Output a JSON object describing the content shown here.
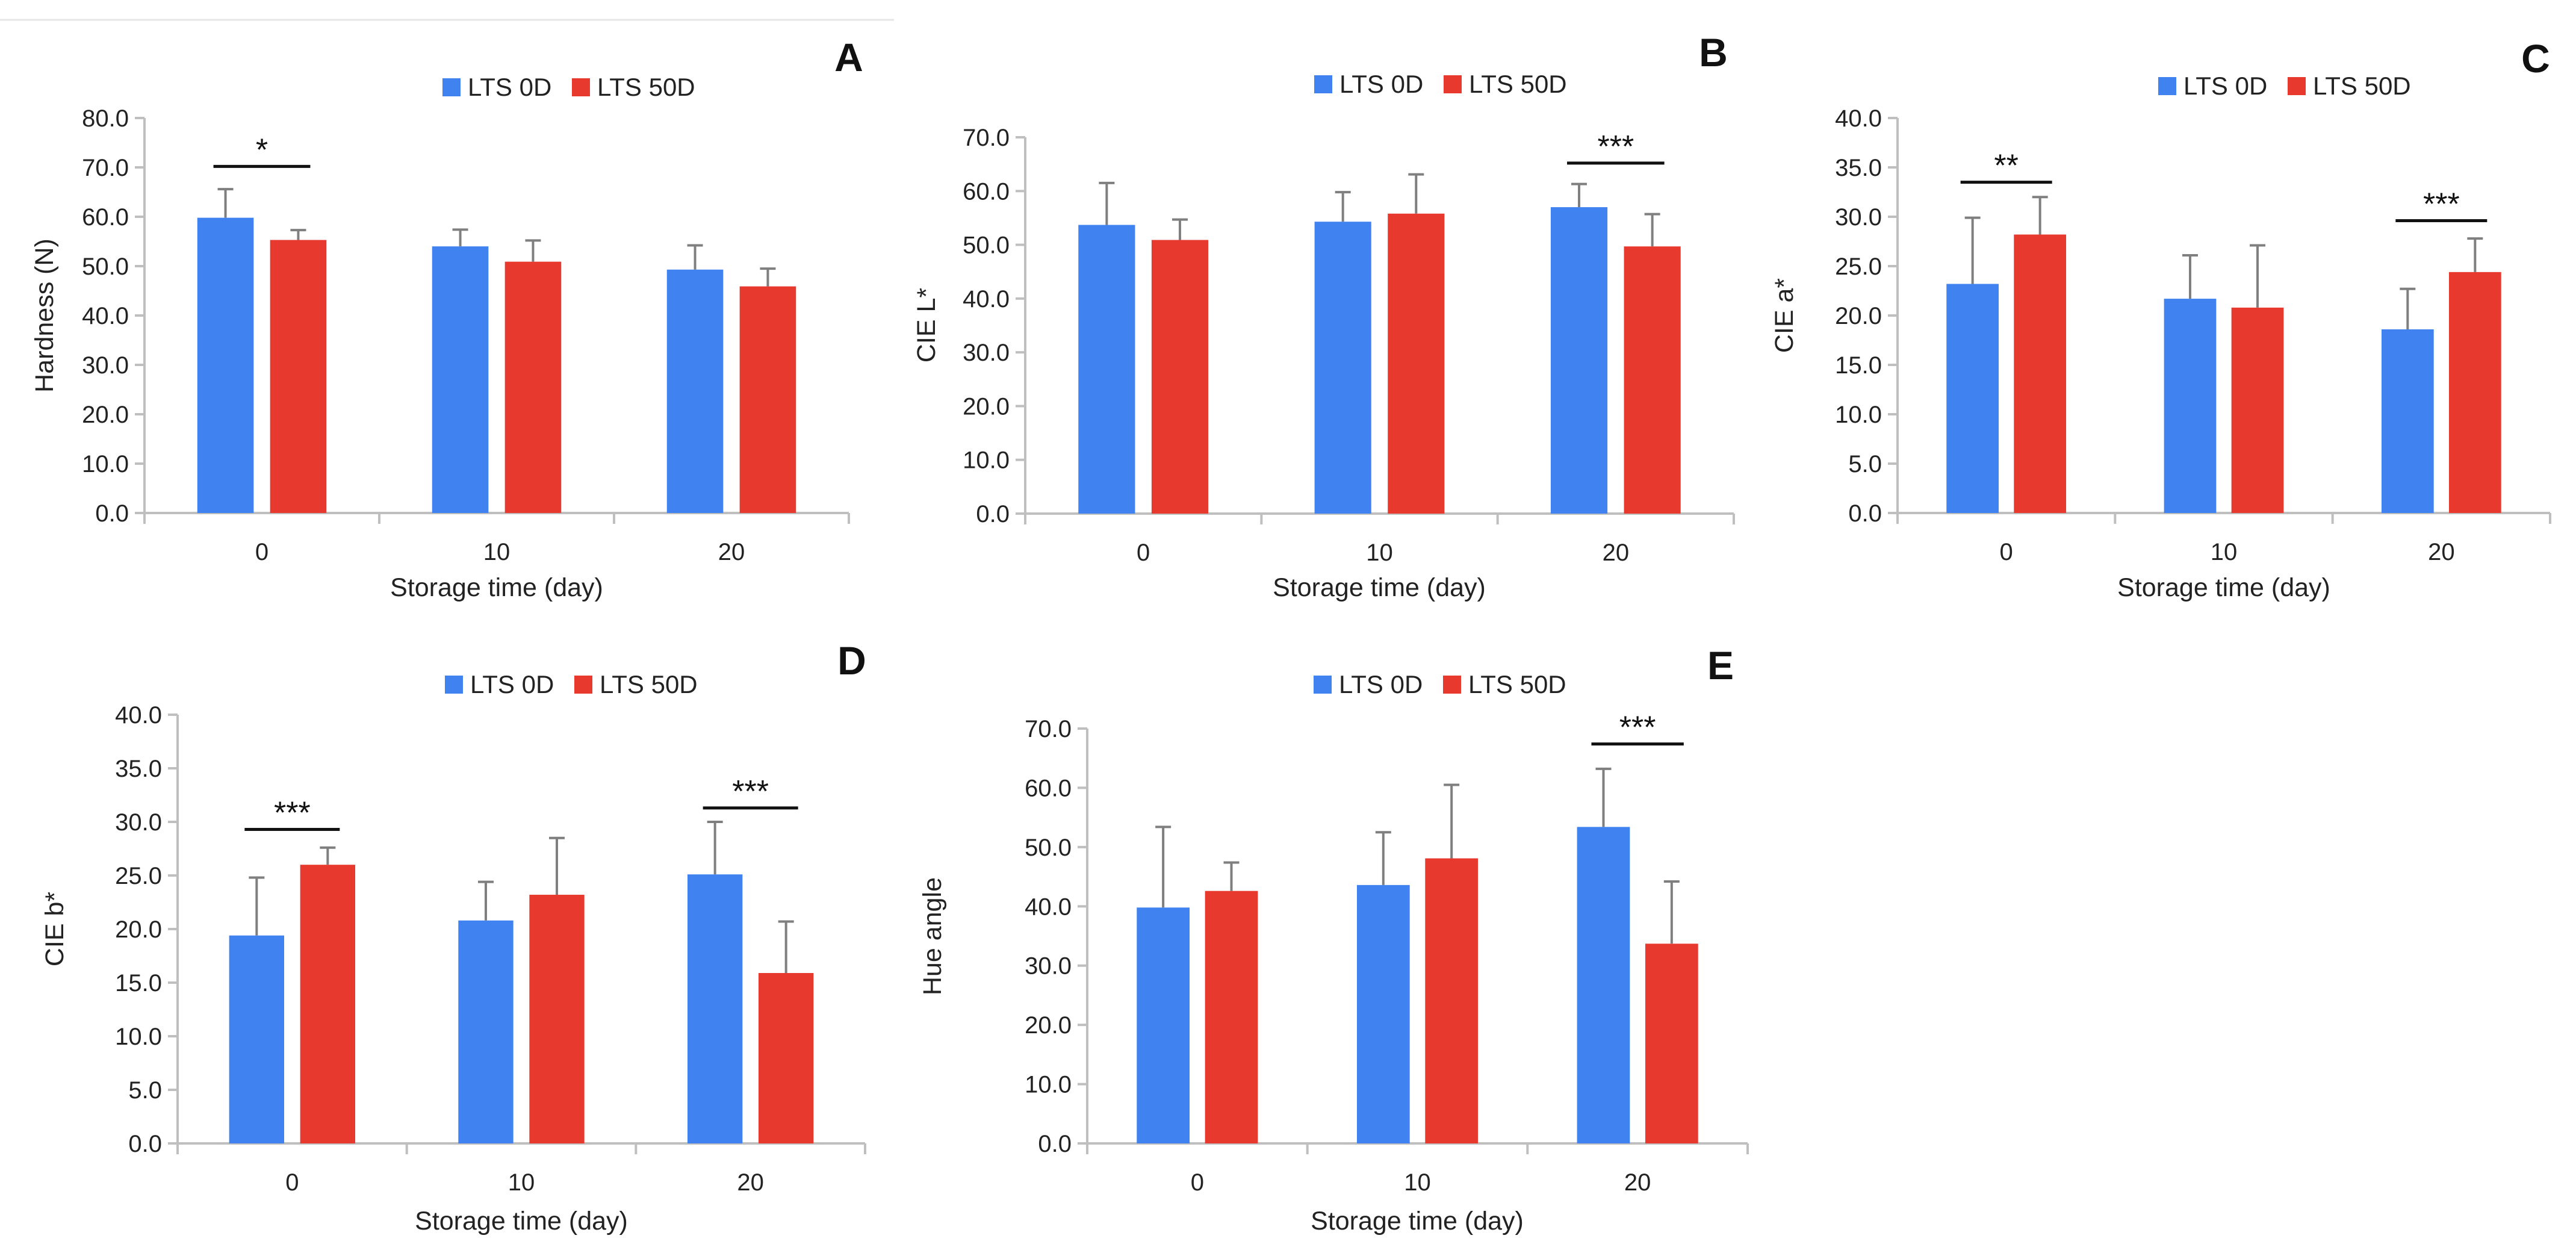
{
  "colors": {
    "lts0": "#3f82f0",
    "lts50": "#e8392f",
    "axis": "#bfbfbf",
    "text": "#222222",
    "error": "#7f7f7f"
  },
  "legend": [
    "LTS 0D",
    "LTS 50D"
  ],
  "chart_data": [
    {
      "type": "bar",
      "panel": "A",
      "title": "",
      "xlabel": "Storage time (day)",
      "ylabel": "Hardness (N)",
      "categories": [
        "0",
        "10",
        "20"
      ],
      "ylim": [
        0,
        80
      ],
      "yticks": [
        0,
        10,
        20,
        30,
        40,
        50,
        60,
        70,
        80
      ],
      "tick_labels": [
        "0.0",
        "10.0",
        "20.0",
        "30.0",
        "40.0",
        "50.0",
        "60.0",
        "70.0",
        "80.0"
      ],
      "series": [
        {
          "name": "LTS 0D",
          "values": [
            59.8,
            54.0,
            49.3
          ],
          "errors": [
            5.8,
            3.4,
            4.9
          ]
        },
        {
          "name": "LTS 50D",
          "values": [
            55.3,
            50.9,
            45.9
          ],
          "errors": [
            2.0,
            4.3,
            3.6
          ]
        }
      ],
      "significance": [
        {
          "category": 0,
          "label": "*",
          "y": 70.2
        }
      ]
    },
    {
      "type": "bar",
      "panel": "B",
      "title": "",
      "xlabel": "Storage time (day)",
      "ylabel": "CIE L*",
      "categories": [
        "0",
        "10",
        "20"
      ],
      "ylim": [
        0,
        70
      ],
      "yticks": [
        0,
        10,
        20,
        30,
        40,
        50,
        60,
        70
      ],
      "tick_labels": [
        "0.0",
        "10.0",
        "20.0",
        "30.0",
        "40.0",
        "50.0",
        "60.0",
        "70.0"
      ],
      "series": [
        {
          "name": "LTS 0D",
          "values": [
            53.7,
            54.3,
            57.0
          ],
          "errors": [
            7.8,
            5.5,
            4.3
          ]
        },
        {
          "name": "LTS 50D",
          "values": [
            50.9,
            55.8,
            49.7
          ],
          "errors": [
            3.8,
            7.3,
            6.0
          ]
        }
      ],
      "significance": [
        {
          "category": 2,
          "label": "***",
          "y": 65.2
        }
      ]
    },
    {
      "type": "bar",
      "panel": "C",
      "title": "",
      "xlabel": "Storage time (day)",
      "ylabel": "CIE a*",
      "categories": [
        "0",
        "10",
        "20"
      ],
      "ylim": [
        0,
        40
      ],
      "yticks": [
        0,
        5,
        10,
        15,
        20,
        25,
        30,
        35,
        40
      ],
      "tick_labels": [
        "0.0",
        "5.0",
        "10.0",
        "15.0",
        "20.0",
        "25.0",
        "30.0",
        "35.0",
        "40.0"
      ],
      "series": [
        {
          "name": "LTS 0D",
          "values": [
            23.2,
            21.7,
            18.6
          ],
          "errors": [
            6.7,
            4.4,
            4.1
          ]
        },
        {
          "name": "LTS 50D",
          "values": [
            28.2,
            20.8,
            24.4
          ],
          "errors": [
            3.8,
            6.3,
            3.4
          ]
        }
      ],
      "significance": [
        {
          "category": 0,
          "label": "**",
          "y": 33.5
        },
        {
          "category": 2,
          "label": "***",
          "y": 29.6
        }
      ]
    },
    {
      "type": "bar",
      "panel": "D",
      "title": "",
      "xlabel": "Storage time (day)",
      "ylabel": "CIE b*",
      "categories": [
        "0",
        "10",
        "20"
      ],
      "ylim": [
        0,
        40
      ],
      "yticks": [
        0,
        5,
        10,
        15,
        20,
        25,
        30,
        35,
        40
      ],
      "tick_labels": [
        "0.0",
        "5.0",
        "10.0",
        "15.0",
        "20.0",
        "25.0",
        "30.0",
        "35.0",
        "40.0"
      ],
      "series": [
        {
          "name": "LTS 0D",
          "values": [
            19.4,
            20.8,
            25.1
          ],
          "errors": [
            5.4,
            3.6,
            4.9
          ]
        },
        {
          "name": "LTS 50D",
          "values": [
            26.0,
            23.2,
            15.9
          ],
          "errors": [
            1.6,
            5.3,
            4.8
          ]
        }
      ],
      "significance": [
        {
          "category": 0,
          "label": "***",
          "y": 29.3
        },
        {
          "category": 2,
          "label": "***",
          "y": 31.3
        }
      ]
    },
    {
      "type": "bar",
      "panel": "E",
      "title": "",
      "xlabel": "Storage time (day)",
      "ylabel": "Hue angle",
      "categories": [
        "0",
        "10",
        "20"
      ],
      "ylim": [
        0,
        70
      ],
      "yticks": [
        0,
        10,
        20,
        30,
        40,
        50,
        60,
        70
      ],
      "tick_labels": [
        "0.0",
        "10.0",
        "20.0",
        "30.0",
        "40.0",
        "50.0",
        "60.0",
        "70.0"
      ],
      "series": [
        {
          "name": "LTS 0D",
          "values": [
            39.8,
            43.6,
            53.4
          ],
          "errors": [
            13.6,
            8.9,
            9.8
          ]
        },
        {
          "name": "LTS 50D",
          "values": [
            42.6,
            48.1,
            33.7
          ],
          "errors": [
            4.8,
            12.4,
            10.5
          ]
        }
      ],
      "significance": [
        {
          "category": 2,
          "label": "***",
          "y": 67.4
        }
      ]
    }
  ]
}
